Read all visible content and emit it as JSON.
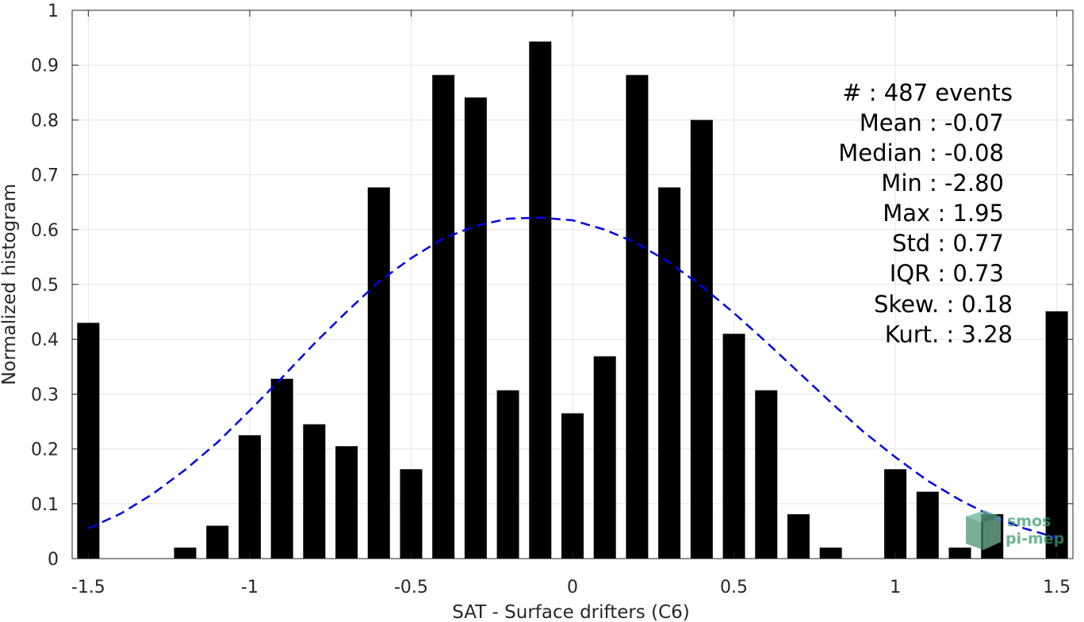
{
  "chart_data": {
    "type": "bar",
    "xlabel": "SAT - Surface drifters (C6)",
    "ylabel": "Normalized histogram",
    "xlim": [
      -1.55,
      1.55
    ],
    "ylim": [
      0,
      1
    ],
    "grid": true,
    "xticks": [
      -1.5,
      -1,
      -0.5,
      0,
      0.5,
      1,
      1.5
    ],
    "xtick_labels": [
      "-1.5",
      "-1",
      "-0.5",
      "0",
      "0.5",
      "1",
      "1.5"
    ],
    "yticks": [
      0,
      0.1,
      0.2,
      0.3,
      0.4,
      0.5,
      0.6,
      0.7,
      0.8,
      0.9,
      1
    ],
    "ytick_labels": [
      "0",
      "0.1",
      "0.2",
      "0.3",
      "0.4",
      "0.5",
      "0.6",
      "0.7",
      "0.8",
      "0.9",
      "1"
    ],
    "bar_color": "#000000",
    "bins": {
      "x": [
        -1.5,
        -1.4,
        -1.3,
        -1.2,
        -1.1,
        -1.0,
        -0.9,
        -0.8,
        -0.7,
        -0.6,
        -0.5,
        -0.4,
        -0.3,
        -0.2,
        -0.1,
        0.0,
        0.1,
        0.2,
        0.3,
        0.4,
        0.5,
        0.6,
        0.7,
        0.8,
        0.9,
        1.0,
        1.1,
        1.2,
        1.3,
        1.5
      ],
      "values": [
        0.43,
        0,
        0,
        0.02,
        0.06,
        0.225,
        0.328,
        0.245,
        0.205,
        0.677,
        0.163,
        0.882,
        0.841,
        0.307,
        0.943,
        0.265,
        0.369,
        0.882,
        0.677,
        0.8,
        0.41,
        0.307,
        0.081,
        0.02,
        0,
        0.163,
        0.122,
        0.02,
        0.081,
        0.451
      ]
    },
    "fit_curve": {
      "style": "dashed",
      "color": "#0000e6",
      "x": [
        -1.5,
        -1.4,
        -1.3,
        -1.2,
        -1.1,
        -1.0,
        -0.9,
        -0.8,
        -0.7,
        -0.6,
        -0.5,
        -0.4,
        -0.3,
        -0.2,
        -0.1,
        0.0,
        0.1,
        0.2,
        0.3,
        0.4,
        0.5,
        0.6,
        0.7,
        0.8,
        0.9,
        1.0,
        1.1,
        1.2,
        1.3,
        1.4,
        1.5
      ],
      "y": [
        0.055,
        0.082,
        0.118,
        0.162,
        0.212,
        0.27,
        0.33,
        0.392,
        0.45,
        0.505,
        0.548,
        0.584,
        0.607,
        0.62,
        0.622,
        0.617,
        0.6,
        0.575,
        0.54,
        0.497,
        0.448,
        0.395,
        0.34,
        0.285,
        0.232,
        0.185,
        0.142,
        0.107,
        0.077,
        0.055,
        0.038
      ]
    }
  },
  "stats": {
    "count": "#  : 487 events",
    "mean": "Mean : -0.07",
    "median": "Median : -0.08",
    "min": "Min : -2.80",
    "max": "Max : 1.95",
    "std": "Std : 0.77",
    "iqr": "IQR : 0.73",
    "skew": "Skew. : 0.18",
    "kurt": "Kurt. : 3.28"
  },
  "logo": {
    "line1": "smos",
    "line2": "pi-mep"
  }
}
